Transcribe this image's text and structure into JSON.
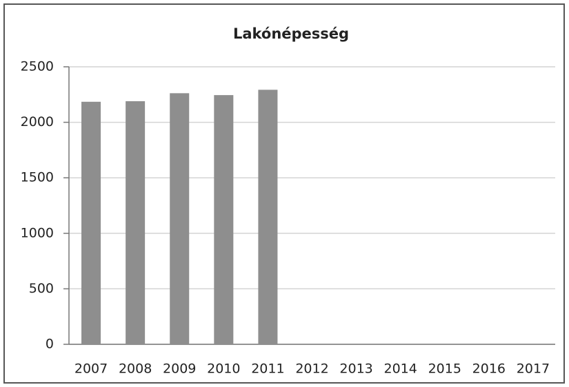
{
  "chart_data": {
    "type": "bar",
    "title": "Lakónépesség",
    "categories": [
      "2007",
      "2008",
      "2009",
      "2010",
      "2011",
      "2012",
      "2013",
      "2014",
      "2015",
      "2016",
      "2017"
    ],
    "values": [
      2185,
      2190,
      2262,
      2245,
      2293,
      null,
      null,
      null,
      null,
      null,
      null
    ],
    "color": "#8e8e8e",
    "ylim": [
      0,
      2500
    ],
    "yticks": [
      0,
      500,
      1000,
      1500,
      2000,
      2500
    ],
    "grid": true
  }
}
